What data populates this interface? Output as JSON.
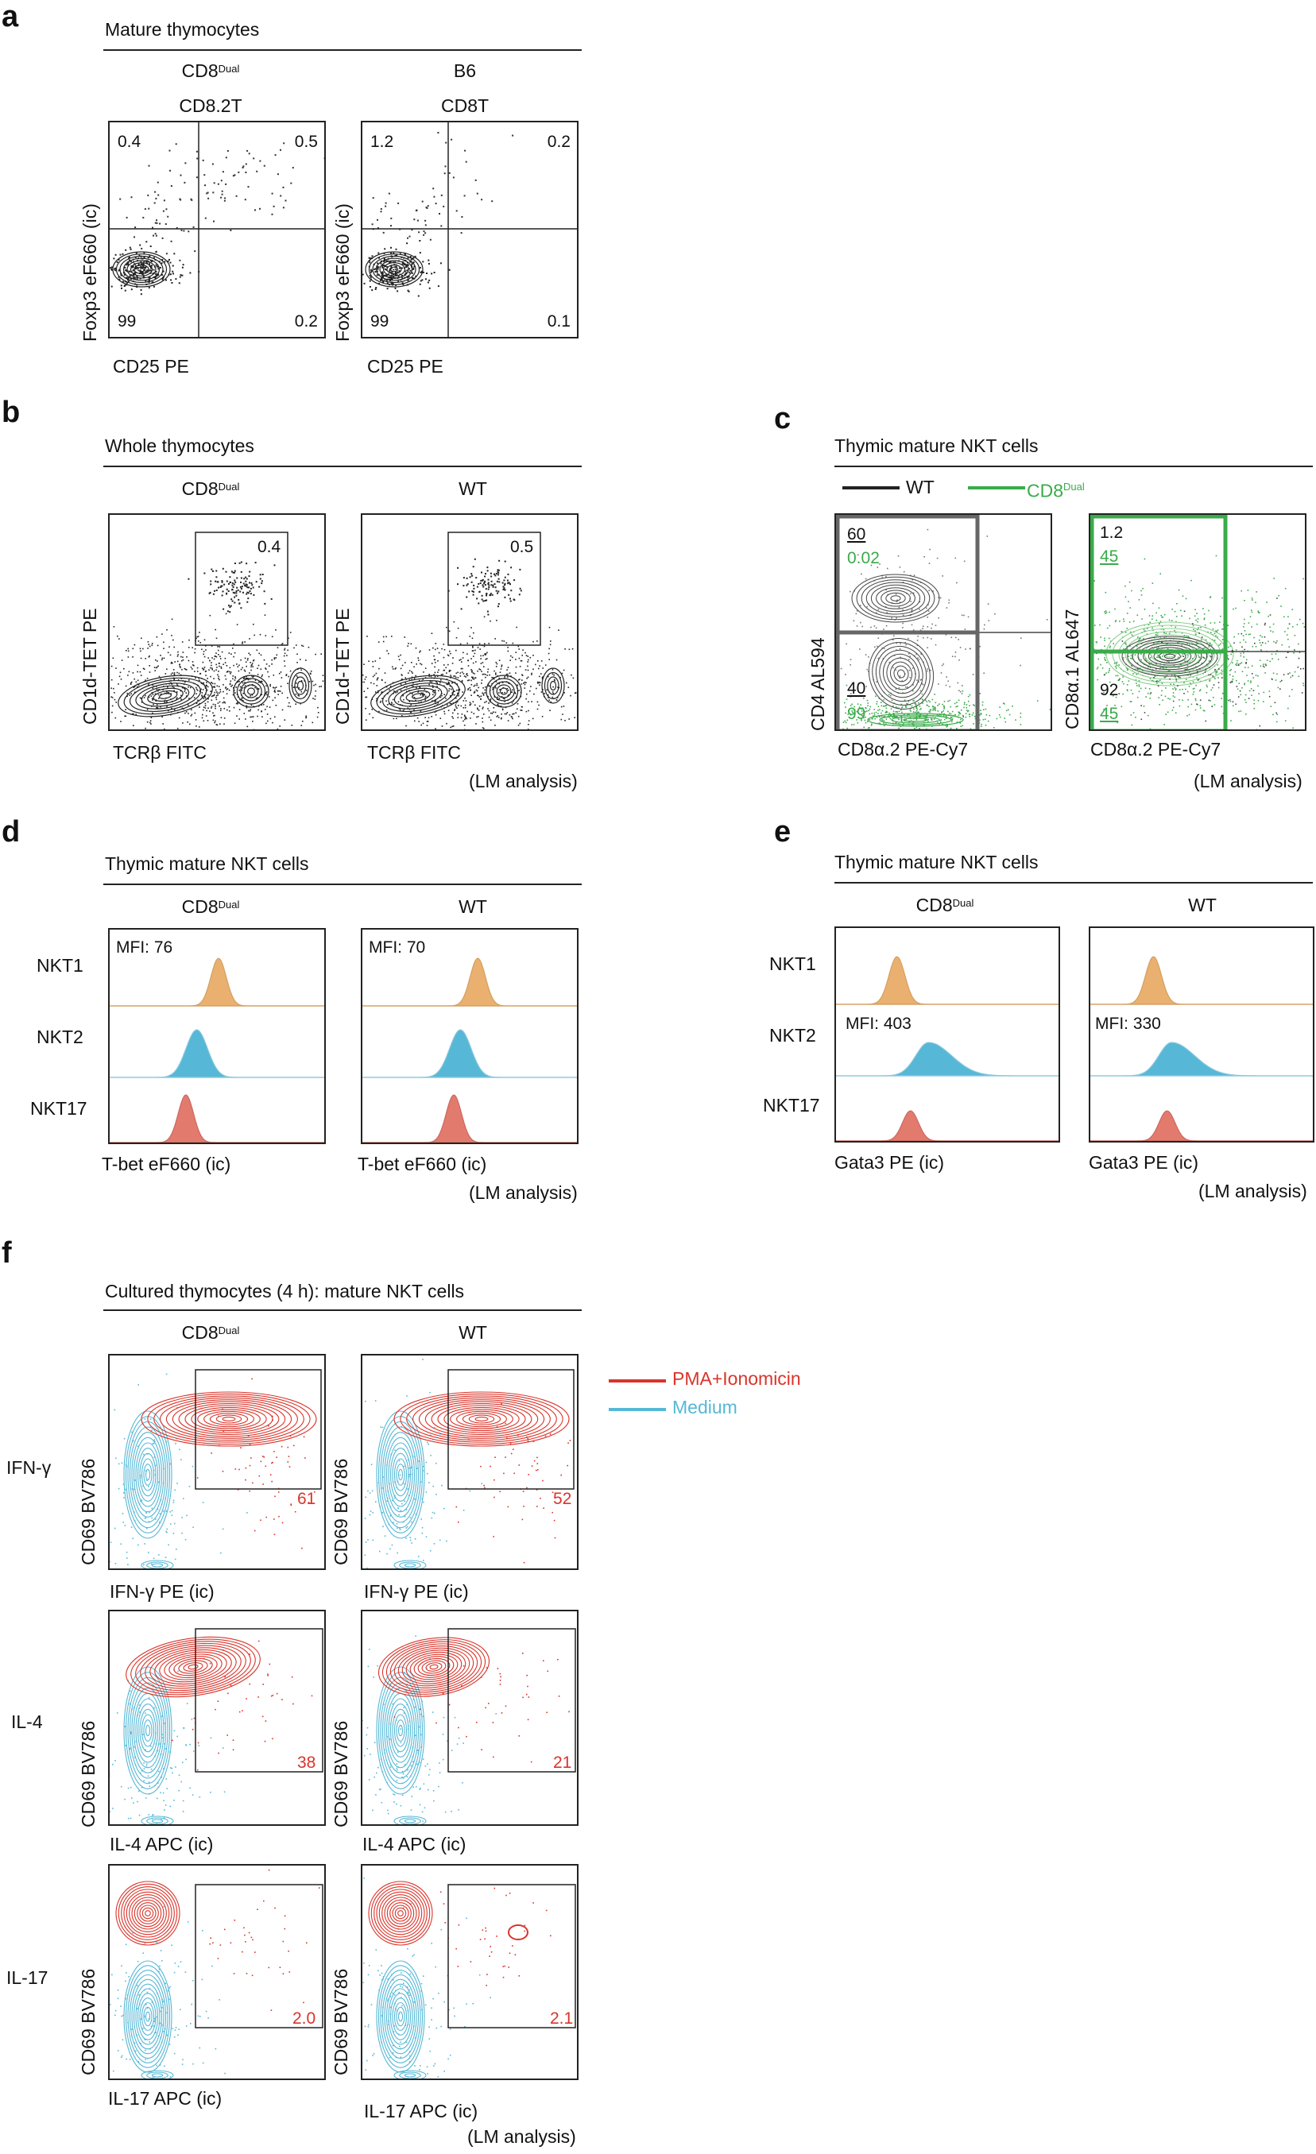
{
  "colors": {
    "red": "#d9342a",
    "blue": "#56b8d6",
    "orange": "#e9b070",
    "pink": "#e37a6e",
    "green": "#3aab4a",
    "black": "#222222"
  },
  "panel_a": {
    "letter": "a",
    "title": "Mature thymocytes",
    "col1": {
      "name": "CD8",
      "sup": "Dual",
      "sub": "CD8.2T"
    },
    "col2": {
      "name": "B6",
      "sub": "CD8T"
    },
    "ylabel": "Foxp3 eF660 (ic)",
    "xlabel": "CD25 PE",
    "q1": {
      "ul": "0.4",
      "ur": "0.5",
      "ll": "99",
      "lr": "0.2"
    },
    "q2": {
      "ul": "1.2",
      "ur": "0.2",
      "ll": "99",
      "lr": "0.1"
    }
  },
  "panel_b": {
    "letter": "b",
    "title": "Whole thymocytes",
    "col1": {
      "name": "CD8",
      "sup": "Dual"
    },
    "col2": {
      "name": "WT"
    },
    "ylabel": "CD1d-TET PE",
    "xlabel": "TCRβ FITC",
    "gate1": "0.4",
    "gate2": "0.5",
    "lm": "(LM analysis)"
  },
  "panel_c": {
    "letter": "c",
    "title": "Thymic mature NKT cells",
    "legend_wt": "WT",
    "legend_cd8": "CD8",
    "legend_sup": "Dual",
    "plot1": {
      "ylabel": "CD4 AL594",
      "xlabel": "CD8α.2 PE-Cy7",
      "ul_wt": "60",
      "ul_cd8": "0.02",
      "ll_wt": "40",
      "ll_cd8": "99"
    },
    "plot2": {
      "ylabel": "CD8α.1 AL647",
      "xlabel": "CD8α.2 PE-Cy7",
      "ul_wt": "1.2",
      "ul_cd8": "45",
      "ll_wt": "92",
      "ll_cd8": "45"
    },
    "lm": "(LM analysis)"
  },
  "panel_d": {
    "letter": "d",
    "title": "Thymic mature NKT cells",
    "col1": {
      "name": "CD8",
      "sup": "Dual"
    },
    "col2": {
      "name": "WT"
    },
    "rows": [
      "NKT1",
      "NKT2",
      "NKT17"
    ],
    "mfi1": "MFI: 76",
    "mfi2": "MFI: 70",
    "xlabel": "T-bet eF660 (ic)",
    "lm": "(LM analysis)"
  },
  "panel_e": {
    "letter": "e",
    "title": "Thymic mature NKT cells",
    "col1": {
      "name": "CD8",
      "sup": "Dual"
    },
    "col2": {
      "name": "WT"
    },
    "rows": [
      "NKT1",
      "NKT2",
      "NKT17"
    ],
    "mfi1": "MFI: 403",
    "mfi2": "MFI: 330",
    "xlabel": "Gata3 PE (ic)",
    "lm": "(LM analysis)"
  },
  "panel_f": {
    "letter": "f",
    "title": "Cultured thymocytes (4 h): mature NKT cells",
    "col1": {
      "name": "CD8",
      "sup": "Dual"
    },
    "col2": {
      "name": "WT"
    },
    "legend": [
      "PMA+Ionomicin",
      "Medium"
    ],
    "ylabel": "CD69 BV786",
    "rows": [
      {
        "label": "IFN-γ",
        "xlabel": "IFN-γ PE (ic)",
        "v1": "61",
        "v2": "52"
      },
      {
        "label": "IL-4",
        "xlabel": "IL-4 APC (ic)",
        "v1": "38",
        "v2": "21"
      },
      {
        "label": "IL-17",
        "xlabel": "IL-17 APC (ic)",
        "v1": "2.0",
        "v2": "2.1"
      }
    ],
    "lm": "(LM analysis)"
  }
}
